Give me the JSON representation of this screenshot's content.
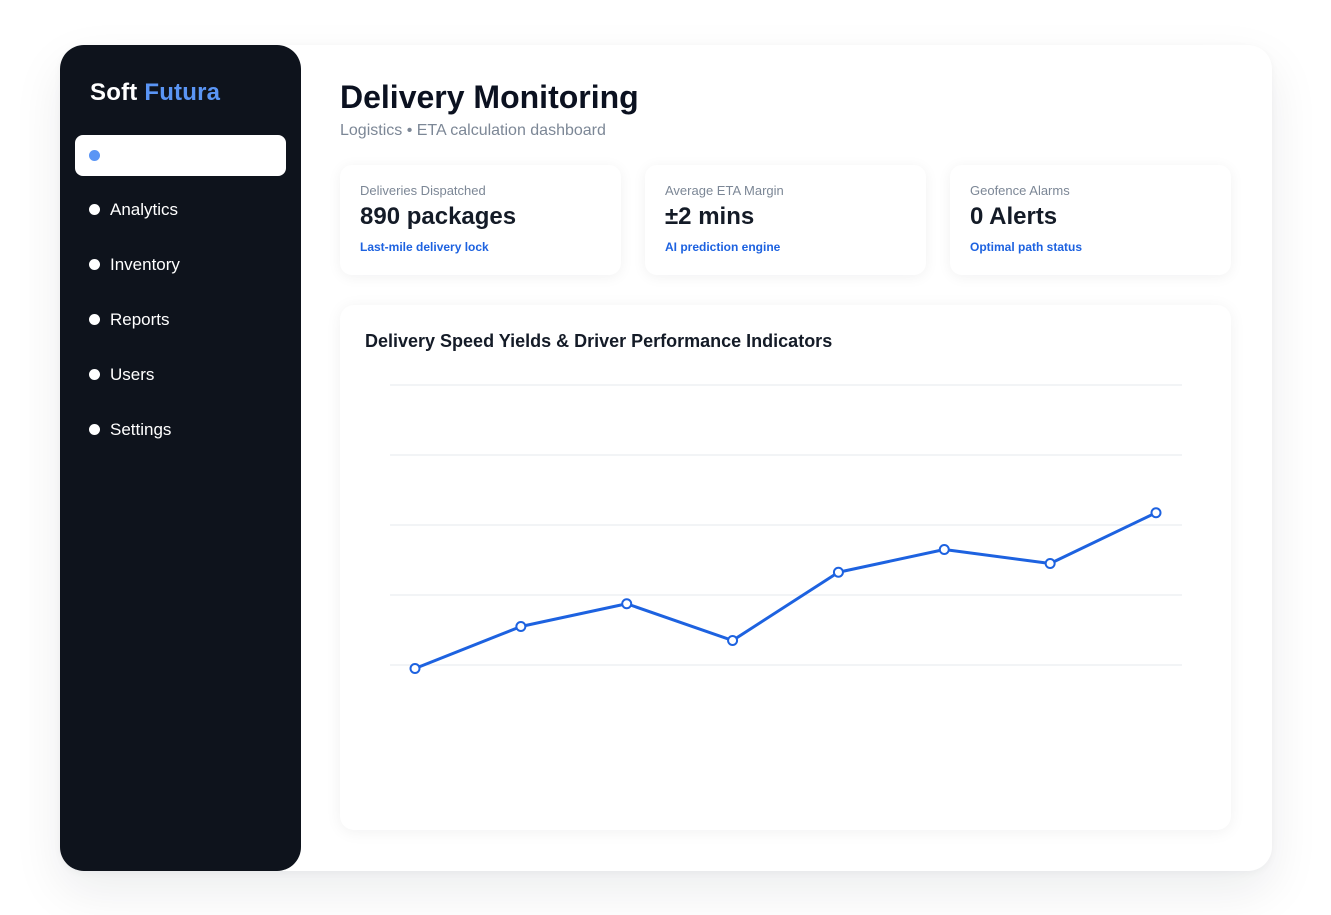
{
  "brand": {
    "name": "Soft",
    "accent": "Futura"
  },
  "sidebar": {
    "items": [
      {
        "label": "",
        "active": true
      },
      {
        "label": "Analytics",
        "active": false
      },
      {
        "label": "Inventory",
        "active": false
      },
      {
        "label": "Reports",
        "active": false
      },
      {
        "label": "Users",
        "active": false
      },
      {
        "label": "Settings",
        "active": false
      }
    ]
  },
  "header": {
    "title": "Delivery Monitoring",
    "subtitle": "Logistics • ETA calculation dashboard"
  },
  "stats": [
    {
      "label": "Deliveries Dispatched",
      "value": "890 packages",
      "note": "Last-mile delivery lock"
    },
    {
      "label": "Average ETA Margin",
      "value": "±2 mins",
      "note": "AI prediction engine"
    },
    {
      "label": "Geofence Alarms",
      "value": "0 Alerts",
      "note": "Optimal path status"
    }
  ],
  "colors": {
    "sidebar_bg": "#0e131c",
    "accent": "#5a95f5",
    "line": "#1d62e0",
    "note": "#1d62e0"
  },
  "chart": {
    "title": "Delivery Speed Yields & Driver Performance Indicators"
  },
  "chart_data": {
    "type": "line",
    "title": "Delivery Speed Yields & Driver Performance Indicators",
    "xlabel": "",
    "ylabel": "",
    "grid": true,
    "ylim": [
      0,
      100
    ],
    "x": [
      1,
      2,
      3,
      4,
      5,
      6,
      7,
      8
    ],
    "series": [
      {
        "values": [
          19,
          31,
          37.5,
          27,
          46.5,
          53,
          49,
          63.5
        ]
      }
    ]
  }
}
